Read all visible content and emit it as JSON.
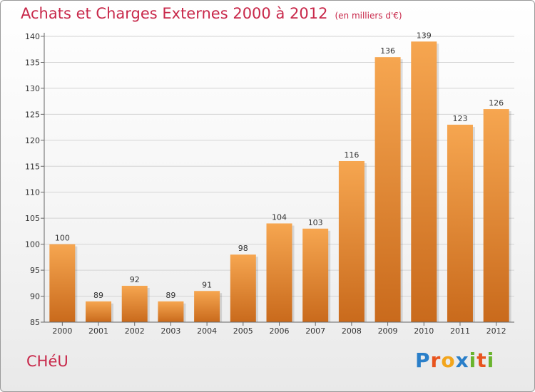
{
  "page": {
    "title": "Achats et Charges Externes 2000 à 2012",
    "unit": "(en milliers d'€)",
    "commune": "CHéU",
    "logo": {
      "letters": [
        "P",
        "r",
        "o",
        "x",
        "i",
        "t",
        "i"
      ],
      "colors": [
        "#2a7fc9",
        "#e8541e",
        "#f2a51c",
        "#2a7fc9",
        "#6ab42d",
        "#e8541e",
        "#6ab42d"
      ]
    }
  },
  "chart_data": {
    "type": "bar",
    "categories": [
      "2000",
      "2001",
      "2002",
      "2003",
      "2004",
      "2005",
      "2006",
      "2007",
      "2008",
      "2009",
      "2010",
      "2011",
      "2012"
    ],
    "values": [
      100,
      89,
      92,
      89,
      91,
      98,
      104,
      103,
      116,
      136,
      139,
      123,
      126
    ],
    "title": "Achats et Charges Externes 2000 à 2012",
    "ylabel": "(en milliers d'€)",
    "ylim": [
      85,
      140
    ],
    "yticks": [
      85,
      90,
      95,
      100,
      105,
      110,
      115,
      120,
      125,
      130,
      135,
      140
    ],
    "grid": true,
    "colors": {
      "bar_top": "#f6a650",
      "bar_bottom": "#c96a1c",
      "label": "#c8284a"
    }
  }
}
